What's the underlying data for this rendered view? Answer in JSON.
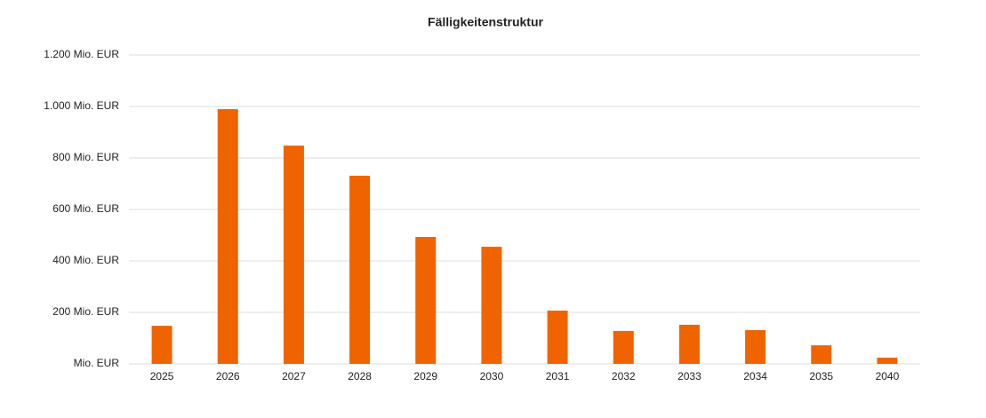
{
  "chart_data": {
    "type": "bar",
    "title": "Fälligkeitenstruktur",
    "categories": [
      "2025",
      "2026",
      "2027",
      "2028",
      "2029",
      "2030",
      "2031",
      "2032",
      "2033",
      "2034",
      "2035",
      "2040"
    ],
    "values": [
      148,
      990,
      848,
      731,
      493,
      455,
      207,
      128,
      152,
      131,
      72,
      24
    ],
    "color": "#f06400",
    "ylim": [
      0,
      1200
    ],
    "yticks": [
      {
        "value": 0,
        "label": "Mio. EUR"
      },
      {
        "value": 200,
        "label": "200 Mio. EUR"
      },
      {
        "value": 400,
        "label": "400 Mio. EUR"
      },
      {
        "value": 600,
        "label": "600 Mio. EUR"
      },
      {
        "value": 800,
        "label": "800 Mio. EUR"
      },
      {
        "value": 1000,
        "label": "1.000 Mio. EUR"
      },
      {
        "value": 1200,
        "label": "1.200 Mio. EUR"
      }
    ],
    "grid": true
  }
}
